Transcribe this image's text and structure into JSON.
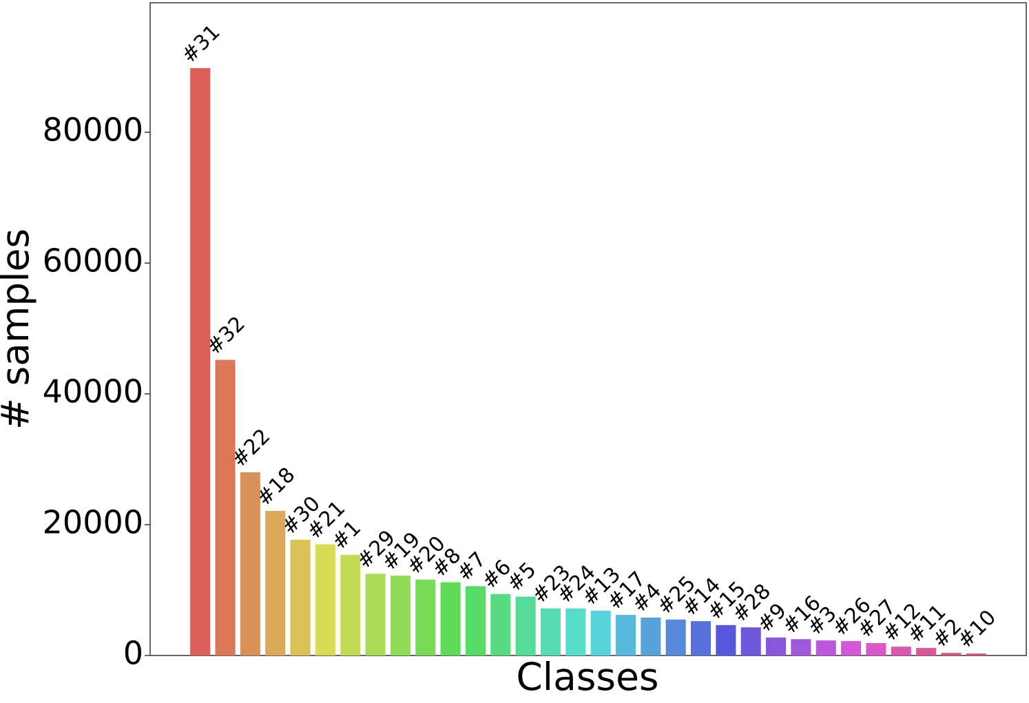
{
  "chart_data": {
    "type": "bar",
    "xlabel": "Classes",
    "ylabel": "# samples",
    "categories": [
      "#31",
      "#32",
      "#22",
      "#18",
      "#30",
      "#21",
      "#1",
      "#29",
      "#19",
      "#20",
      "#8",
      "#7",
      "#6",
      "#5",
      "#23",
      "#24",
      "#13",
      "#17",
      "#4",
      "#25",
      "#14",
      "#15",
      "#28",
      "#9",
      "#16",
      "#3",
      "#26",
      "#27",
      "#12",
      "#11",
      "#2",
      "#10"
    ],
    "values": [
      89800,
      45200,
      28000,
      22100,
      17700,
      17000,
      15400,
      12500,
      12200,
      11600,
      11200,
      10600,
      9400,
      9000,
      7200,
      7200,
      6850,
      6200,
      5800,
      5500,
      5250,
      4650,
      4300,
      2750,
      2500,
      2300,
      2200,
      1900,
      1350,
      1150,
      400,
      300
    ],
    "colors": [
      "#db5f57",
      "#db7857",
      "#db9057",
      "#dba957",
      "#dbc257",
      "#d9db57",
      "#c3db57",
      "#aadb57",
      "#91db57",
      "#78db57",
      "#5fdb57",
      "#57db67",
      "#57db80",
      "#57db99",
      "#57dbb2",
      "#57dbca",
      "#57d3db",
      "#57badb",
      "#57a2db",
      "#5789db",
      "#5770db",
      "#5757db",
      "#6f57db",
      "#8857db",
      "#a157db",
      "#ba57db",
      "#d357db",
      "#db57cb",
      "#db57b2",
      "#db5799",
      "#db5780",
      "#db5768"
    ],
    "ylim": [
      0,
      99800
    ],
    "yticks": [
      0,
      20000,
      40000,
      60000,
      80000
    ],
    "grid": false
  }
}
